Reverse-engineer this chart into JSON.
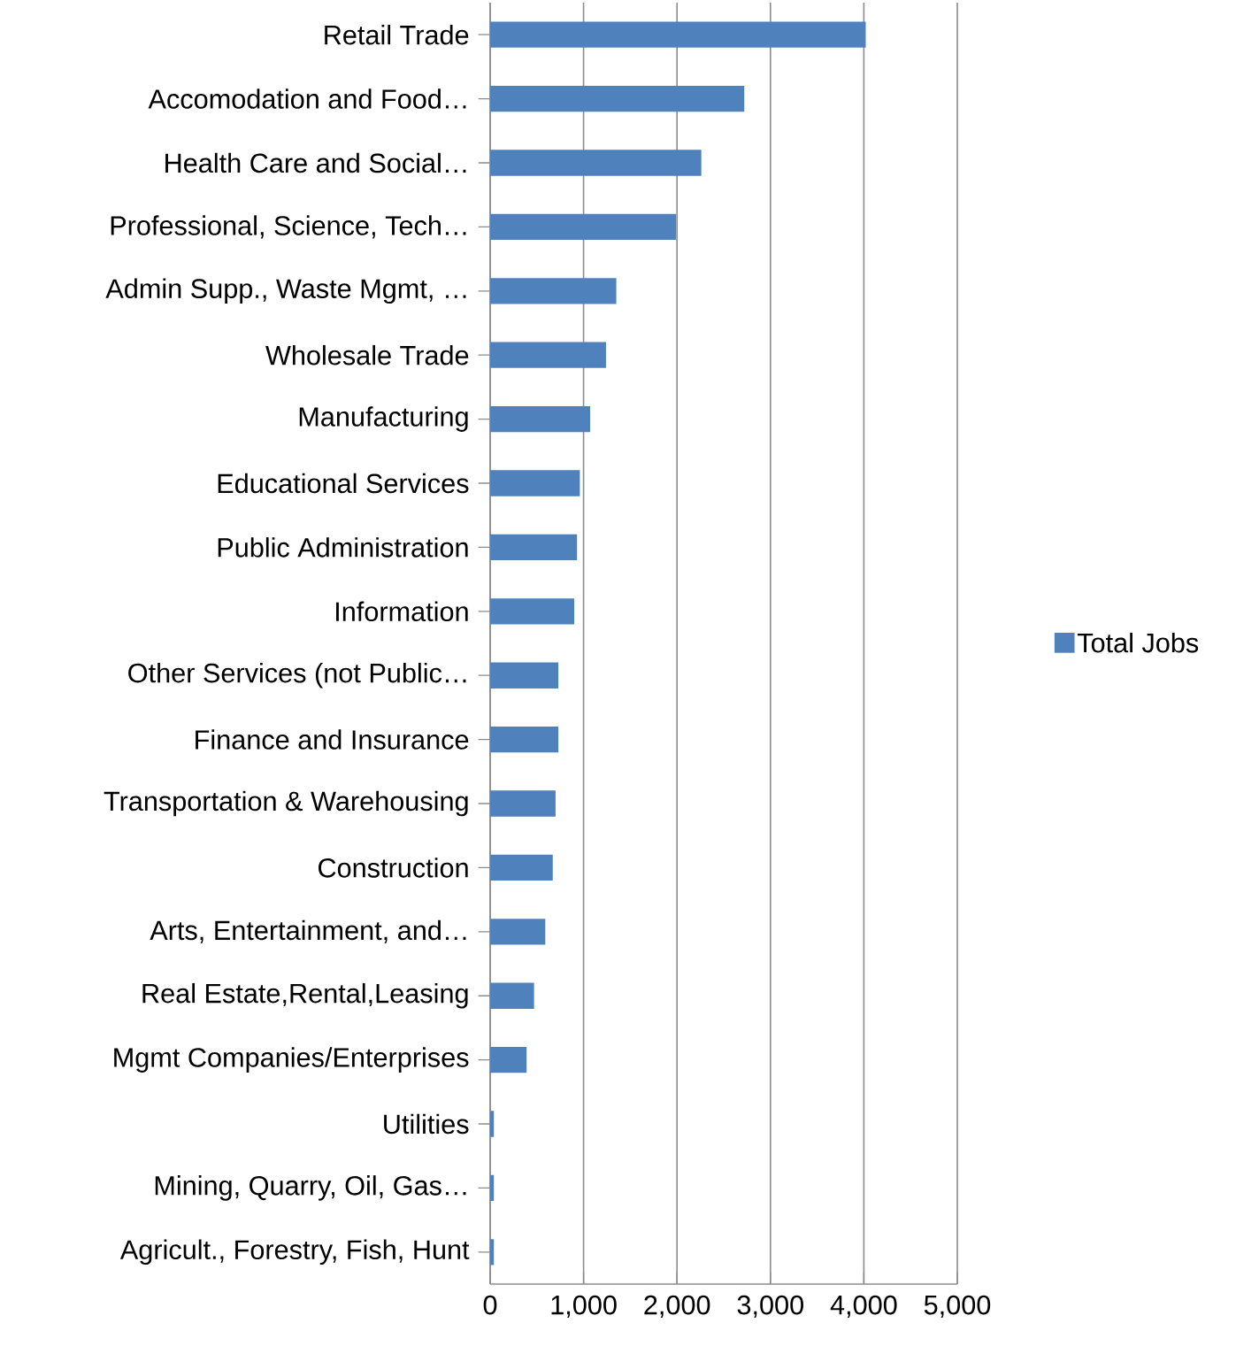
{
  "chart_data": {
    "type": "bar",
    "orientation": "horizontal",
    "categories": [
      "Retail Trade",
      "Accomodation and Food…",
      "Health Care and Social…",
      "Professional, Science, Tech…",
      "Admin Supp.,  Waste  Mgmt, …",
      "Wholesale Trade",
      "Manufacturing",
      "Educational  Services",
      "Public Administration",
      "Information",
      "Other Services (not Public…",
      "Finance and Insurance",
      "Transportation  & Warehousing",
      "Construction",
      "Arts, Entertainment,  and…",
      "Real Estate,Rental,Leasing",
      "Mgmt Companies/Enterprises",
      "Utilities",
      "Mining, Quarry, Oil, Gas…",
      "Agricult., Forestry, Fish, Hunt"
    ],
    "series": [
      {
        "name": "Total Jobs",
        "color": "#4f81bd",
        "values": [
          4020,
          2720,
          2260,
          1990,
          1350,
          1240,
          1070,
          960,
          930,
          900,
          730,
          730,
          700,
          670,
          590,
          470,
          390,
          40,
          40,
          40
        ]
      }
    ],
    "xlim": [
      0,
      5000
    ],
    "xticks": [
      0,
      {
        "value": 1000,
        "label": "1,000"
      },
      {
        "value": 2000,
        "label": "2,000"
      },
      {
        "value": 3000,
        "label": "3,000"
      },
      {
        "value": 4000,
        "label": "4,000"
      },
      {
        "value": 5000,
        "label": "5,000"
      }
    ],
    "grid": "x",
    "legend": "right"
  }
}
